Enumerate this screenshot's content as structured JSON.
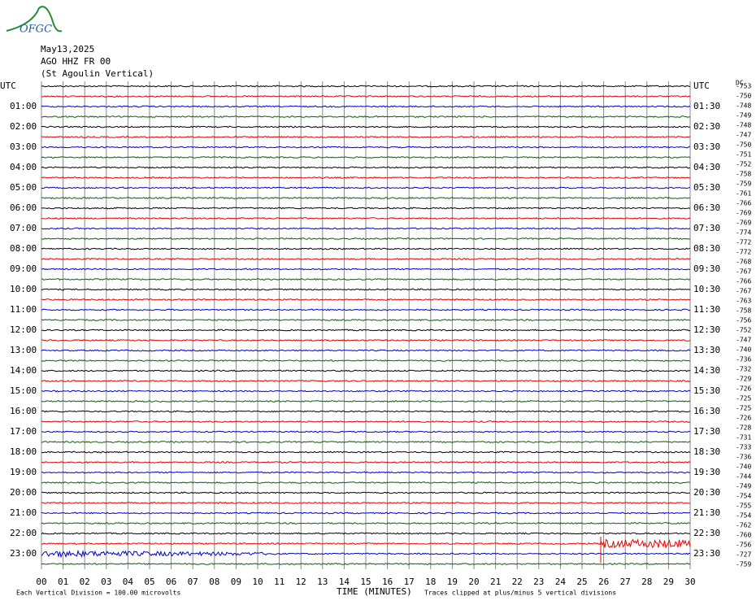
{
  "logo": "OFGC",
  "header": {
    "date": "May13,2025",
    "station": "AGO HHZ FR 00",
    "location": "(St Agoulin Vertical)"
  },
  "left_labels": [
    "UTC",
    "01:00",
    "02:00",
    "03:00",
    "04:00",
    "05:00",
    "06:00",
    "07:00",
    "08:00",
    "09:00",
    "10:00",
    "11:00",
    "12:00",
    "13:00",
    "14:00",
    "15:00",
    "16:00",
    "17:00",
    "18:00",
    "19:00",
    "20:00",
    "21:00",
    "22:00",
    "23:00"
  ],
  "right_labels": [
    "UTC",
    "01:30",
    "02:30",
    "03:30",
    "04:30",
    "05:30",
    "06:30",
    "07:30",
    "08:30",
    "09:30",
    "10:30",
    "11:30",
    "12:30",
    "13:30",
    "14:30",
    "15:30",
    "16:30",
    "17:30",
    "18:30",
    "19:30",
    "20:30",
    "21:30",
    "22:30",
    "23:30"
  ],
  "dc_label": "DC",
  "dc_offsets": [
    -753,
    -750,
    -748,
    -749,
    -748,
    -747,
    -750,
    -751,
    -752,
    -758,
    -759,
    -761,
    -766,
    -769,
    -769,
    -774,
    -772,
    -772,
    -768,
    -767,
    -766,
    -767,
    -763,
    -758,
    -756,
    -752,
    -747,
    -740,
    -736,
    -732,
    -729,
    -726,
    -725,
    -725,
    -726,
    -728,
    -731,
    -733,
    -736,
    -740,
    -744,
    -749,
    -754,
    -755,
    -754,
    -762,
    -760,
    -756,
    -727,
    -759
  ],
  "x_ticks": [
    "00",
    "01",
    "02",
    "03",
    "04",
    "05",
    "06",
    "07",
    "08",
    "09",
    "10",
    "11",
    "12",
    "13",
    "14",
    "15",
    "16",
    "17",
    "18",
    "19",
    "20",
    "21",
    "22",
    "23",
    "24",
    "25",
    "26",
    "27",
    "28",
    "29",
    "30"
  ],
  "footer": {
    "scale": "Each Vertical Division =  100.00 microvolts",
    "axis": "TIME (MINUTES)",
    "clip": "Traces clipped at plus/minus 5 vertical divisions"
  }
}
